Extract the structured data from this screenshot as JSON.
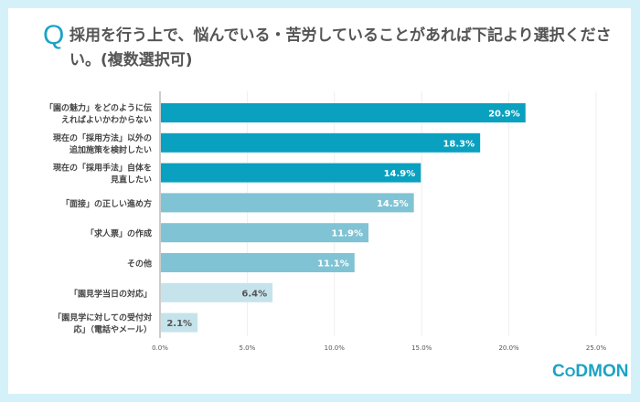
{
  "chart_data": {
    "type": "bar",
    "orientation": "horizontal",
    "title": "採用を行う上で、悩んでいる・苦労していることがあれば下記より選択ください。(複数選択可)",
    "title_marker": "Q",
    "categories": [
      [
        "「園の魅力」をどのように伝",
        "えればよいかわからない"
      ],
      [
        "現在の「採用方法」以外の",
        "追加施策を検討したい"
      ],
      [
        "現在の「採用手法」自体を",
        "見直したい"
      ],
      [
        "「面接」の正しい進め方"
      ],
      [
        "「求人票」の作成"
      ],
      [
        "その他"
      ],
      [
        "「園見学当日の対応」"
      ],
      [
        "「園見学に対しての受付対",
        "応」（電話やメール）"
      ]
    ],
    "values": [
      20.9,
      18.3,
      14.9,
      14.5,
      11.9,
      11.1,
      6.4,
      2.1
    ],
    "data_labels": [
      "20.9%",
      "18.3%",
      "14.9%",
      "14.5%",
      "11.9%",
      "11.1%",
      "6.4%",
      "2.1%"
    ],
    "colors": [
      "#0aa0bf",
      "#0aa0bf",
      "#0aa0bf",
      "#80c3d4",
      "#80c3d4",
      "#80c3d4",
      "#c5e3eb",
      "#c5e3eb"
    ],
    "xlim": [
      0,
      25
    ],
    "xticks": [
      "0.0%",
      "5.0%",
      "10.0%",
      "15.0%",
      "20.0%",
      "25.0%"
    ],
    "grid": true
  },
  "logo": "CODMON",
  "colors": {
    "background": "#d4f1fa",
    "accent": "#1aa3c4"
  }
}
